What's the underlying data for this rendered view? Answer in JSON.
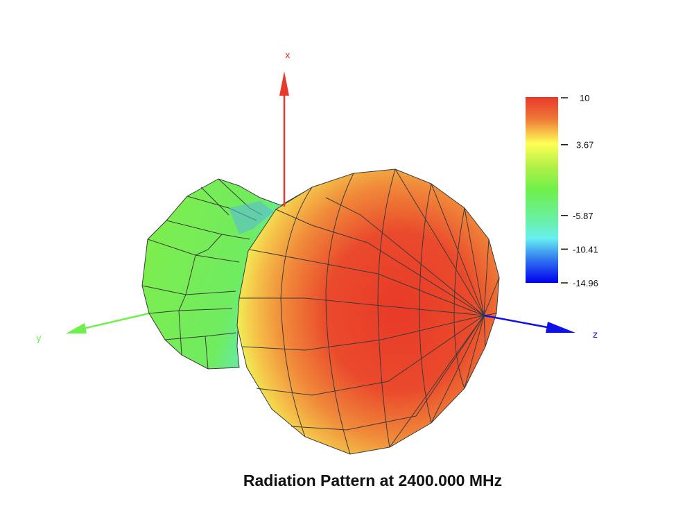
{
  "chart_data": {
    "type": "surface3d",
    "title": "Radiation Pattern at 2400.000 MHz",
    "axes": [
      {
        "name": "x",
        "color": "#e8392b"
      },
      {
        "name": "y",
        "color": "#6ef04a"
      },
      {
        "name": "z",
        "color": "#1010e8"
      }
    ],
    "colorbar": {
      "range": [
        -14.96,
        10
      ],
      "ticks": [
        {
          "value": 10,
          "label": "10"
        },
        {
          "value": 3.67,
          "label": "3.67"
        },
        {
          "value": -5.87,
          "label": "-5.87"
        },
        {
          "value": -10.41,
          "label": "-10.41"
        },
        {
          "value": -14.96,
          "label": "-14.96"
        }
      ],
      "colors": [
        "#e8392b",
        "#f08a3a",
        "#ffff55",
        "#6ef04a",
        "#66f0f0",
        "#2050f0",
        "#0000ee"
      ]
    },
    "max_gain_direction": "+z",
    "min_gain_region": "near +x / -z"
  }
}
